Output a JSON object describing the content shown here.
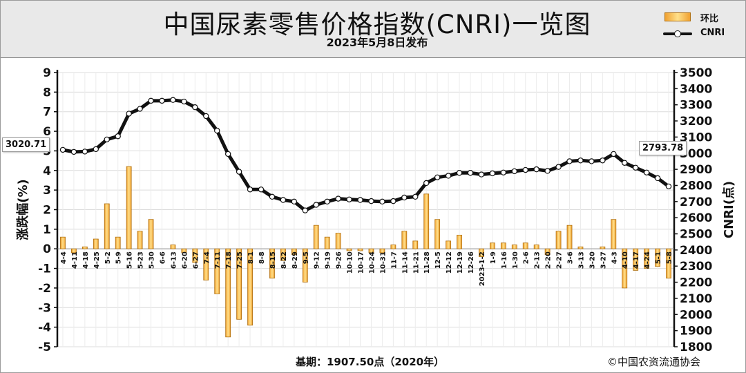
{
  "chart_data": {
    "type": "bar+line",
    "title": "中国尿素零售价格指数(CNRI)一览图",
    "subtitle": "2023年5月8日发布",
    "categories": [
      "4-4",
      "4-11",
      "4-18",
      "4-25",
      "5-2",
      "5-9",
      "5-16",
      "5-23",
      "5-30",
      "6-6",
      "6-13",
      "6-20",
      "6-27",
      "7-4",
      "7-11",
      "7-18",
      "7-25",
      "8-1",
      "8-8",
      "8-15",
      "8-22",
      "8-29",
      "9-5",
      "9-12",
      "9-19",
      "9-26",
      "10-10",
      "10-17",
      "10-24",
      "10-31",
      "11-7",
      "11-14",
      "11-21",
      "11-28",
      "12-5",
      "12-12",
      "12-19",
      "12-26",
      "2023-1-2",
      "1-9",
      "1-16",
      "1-30",
      "2-6",
      "2-13",
      "2-20",
      "2-27",
      "3-6",
      "3-13",
      "3-20",
      "3-27",
      "4-3",
      "4-10",
      "4-17",
      "4-24",
      "5-1",
      "5-8"
    ],
    "series": [
      {
        "name": "环比",
        "axis": "left",
        "kind": "bar",
        "values": [
          0.6,
          -0.2,
          0.1,
          0.5,
          2.3,
          0.6,
          4.2,
          0.9,
          1.5,
          0.0,
          0.2,
          -0.2,
          -0.7,
          -1.6,
          -2.3,
          -4.5,
          -3.6,
          -3.9,
          0.0,
          -1.5,
          -0.6,
          -0.3,
          -1.7,
          1.2,
          0.6,
          0.8,
          -0.1,
          -0.1,
          -0.2,
          -0.2,
          0.2,
          0.9,
          0.4,
          2.8,
          1.5,
          0.4,
          0.7,
          0.0,
          -0.4,
          0.3,
          0.3,
          0.2,
          0.3,
          0.2,
          -0.3,
          0.9,
          1.2,
          0.1,
          0.0,
          0.1,
          1.5,
          -2.0,
          -1.1,
          -1.0,
          -0.9,
          -1.5
        ]
      },
      {
        "name": "CNRI",
        "axis": "right",
        "kind": "line",
        "values": [
          3020.71,
          3008,
          3010,
          3025,
          3085,
          3105,
          3245,
          3275,
          3325,
          3325,
          3330,
          3320,
          3285,
          3230,
          3140,
          2995,
          2885,
          2775,
          2775,
          2730,
          2710,
          2700,
          2645,
          2680,
          2700,
          2718,
          2713,
          2710,
          2703,
          2700,
          2703,
          2725,
          2730,
          2815,
          2850,
          2860,
          2878,
          2878,
          2868,
          2875,
          2880,
          2888,
          2896,
          2900,
          2890,
          2915,
          2950,
          2955,
          2950,
          2955,
          2995,
          2940,
          2910,
          2880,
          2845,
          2793.78
        ]
      }
    ],
    "y_left": {
      "label": "涨跌幅(%)",
      "range": [
        -5,
        9
      ],
      "ticks": [
        "-5",
        "-4",
        "-3",
        "-2",
        "-1",
        "0",
        "1",
        "2",
        "3",
        "4",
        "5",
        "6",
        "7",
        "8",
        "9"
      ]
    },
    "y_right": {
      "label": "CNRI(点)",
      "range": [
        1800,
        3500
      ],
      "ticks": [
        "1800",
        "1900",
        "2000",
        "2100",
        "2200",
        "2300",
        "2400",
        "2500",
        "2600",
        "2700",
        "2800",
        "2900",
        "3000",
        "3100",
        "3200",
        "3300",
        "3400",
        "3500"
      ]
    },
    "callouts": {
      "first": "3020.71",
      "last": "2793.78"
    },
    "grid": true,
    "legend_position": "top-right"
  },
  "footer": {
    "base": "基期：1907.50点（2020年）",
    "copyright": "©中国农资流通协会"
  },
  "colors": {
    "bar_fill_edge": "#f0a030",
    "bar_fill_center": "#ffe08a",
    "bar_stroke": "#b07010",
    "line": "#111111",
    "grid": "#dcdcdc",
    "plot_bg": "#ffffff"
  }
}
